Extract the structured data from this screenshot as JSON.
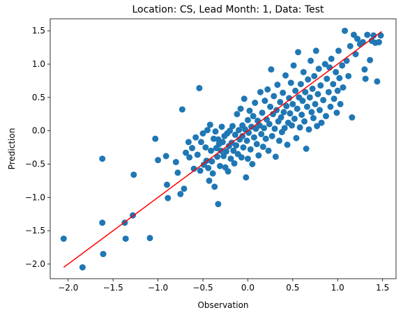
{
  "chart_data": {
    "type": "scatter",
    "title": "Location: CS, Lead Month: 1, Data: Test",
    "xlabel": "Observation",
    "ylabel": "Prediction",
    "xlim": [
      -2.2,
      1.65
    ],
    "ylim": [
      -2.22,
      1.68
    ],
    "xticks": [
      -2.0,
      -1.5,
      -1.0,
      -0.5,
      0.0,
      0.5,
      1.0,
      1.5
    ],
    "yticks": [
      -2.0,
      -1.5,
      -1.0,
      -0.5,
      0.0,
      0.5,
      1.0,
      1.5
    ],
    "xtick_labels": [
      "−2.0",
      "−1.5",
      "−1.0",
      "−0.5",
      "0.0",
      "0.5",
      "1.0",
      "1.5"
    ],
    "ytick_labels": [
      "−2.0",
      "−1.5",
      "−1.0",
      "−0.5",
      "0.0",
      "0.5",
      "1.0",
      "1.5"
    ],
    "grid": false,
    "point_color": "#1f77b4",
    "line_color": "#ff0000",
    "fit_line": {
      "x": [
        -2.05,
        1.49
      ],
      "y": [
        -2.05,
        1.49
      ]
    },
    "points": [
      [
        -2.05,
        -1.62
      ],
      [
        -1.84,
        -2.05
      ],
      [
        -1.62,
        -0.42
      ],
      [
        -1.62,
        -1.38
      ],
      [
        -1.61,
        -1.85
      ],
      [
        -1.37,
        -1.38
      ],
      [
        -1.36,
        -1.62
      ],
      [
        -1.28,
        -1.27
      ],
      [
        -1.27,
        -0.66
      ],
      [
        -1.09,
        -1.61
      ],
      [
        -1.03,
        -0.12
      ],
      [
        -1.0,
        -0.44
      ],
      [
        -0.91,
        -0.38
      ],
      [
        -0.9,
        -0.81
      ],
      [
        -0.89,
        -1.01
      ],
      [
        -0.8,
        -0.47
      ],
      [
        -0.78,
        -0.63
      ],
      [
        -0.75,
        -0.95
      ],
      [
        -0.73,
        0.32
      ],
      [
        -0.71,
        -0.87
      ],
      [
        -0.69,
        -0.33
      ],
      [
        -0.66,
        -0.17
      ],
      [
        -0.65,
        -0.4
      ],
      [
        -0.62,
        -0.26
      ],
      [
        -0.6,
        -0.57
      ],
      [
        -0.58,
        -0.1
      ],
      [
        -0.56,
        -0.36
      ],
      [
        -0.54,
        0.64
      ],
      [
        -0.53,
        -0.6
      ],
      [
        -0.52,
        -0.17
      ],
      [
        -0.5,
        -0.04
      ],
      [
        -0.49,
        -0.51
      ],
      [
        -0.47,
        -0.25
      ],
      [
        -0.46,
        -0.45
      ],
      [
        -0.45,
        0.01
      ],
      [
        -0.44,
        -0.56
      ],
      [
        -0.43,
        -0.75
      ],
      [
        -0.42,
        0.09
      ],
      [
        -0.41,
        -0.3
      ],
      [
        -0.4,
        -0.46
      ],
      [
        -0.39,
        -0.64
      ],
      [
        -0.38,
        -0.12
      ],
      [
        -0.37,
        -0.84
      ],
      [
        -0.36,
        -0.01
      ],
      [
        -0.35,
        -0.26
      ],
      [
        -0.34,
        -0.39
      ],
      [
        -0.33,
        -0.13
      ],
      [
        -0.33,
        -1.1
      ],
      [
        -0.32,
        -0.2
      ],
      [
        -0.31,
        -0.53
      ],
      [
        -0.3,
        -0.3
      ],
      [
        -0.29,
        0.06
      ],
      [
        -0.28,
        -0.17
      ],
      [
        -0.27,
        -0.38
      ],
      [
        -0.26,
        -0.08
      ],
      [
        -0.25,
        -0.55
      ],
      [
        -0.24,
        -0.31
      ],
      [
        -0.23,
        -0.04
      ],
      [
        -0.22,
        -0.61
      ],
      [
        -0.21,
        -0.23
      ],
      [
        -0.2,
        0.0
      ],
      [
        -0.19,
        -0.42
      ],
      [
        -0.18,
        -0.18
      ],
      [
        -0.17,
        0.07
      ],
      [
        -0.16,
        -0.3
      ],
      [
        -0.15,
        -0.49
      ],
      [
        -0.14,
        -0.06
      ],
      [
        -0.13,
        -0.22
      ],
      [
        -0.12,
        0.25
      ],
      [
        -0.11,
        -0.35
      ],
      [
        -0.1,
        0.01
      ],
      [
        -0.09,
        -0.13
      ],
      [
        -0.08,
        0.33
      ],
      [
        -0.07,
        -0.4
      ],
      [
        -0.06,
        -0.08
      ],
      [
        -0.06,
        0.08
      ],
      [
        -0.05,
        -0.25
      ],
      [
        -0.04,
        0.48
      ],
      [
        -0.03,
        0.02
      ],
      [
        -0.02,
        -0.7
      ],
      [
        -0.01,
        -0.15
      ],
      [
        0.0,
        0.16
      ],
      [
        0.0,
        -0.42
      ],
      [
        0.01,
        -0.03
      ],
      [
        0.02,
        0.3
      ],
      [
        0.03,
        -0.28
      ],
      [
        0.04,
        0.06
      ],
      [
        0.05,
        -0.5
      ],
      [
        0.06,
        0.22
      ],
      [
        0.07,
        -0.1
      ],
      [
        0.08,
        0.42
      ],
      [
        0.09,
        0.03
      ],
      [
        0.1,
        -0.2
      ],
      [
        0.11,
        0.15
      ],
      [
        0.12,
        -0.37
      ],
      [
        0.13,
        0.08
      ],
      [
        0.14,
        0.58
      ],
      [
        0.15,
        -0.05
      ],
      [
        0.16,
        0.27
      ],
      [
        0.17,
        -0.24
      ],
      [
        0.18,
        0.04
      ],
      [
        0.19,
        0.45
      ],
      [
        0.2,
        -0.12
      ],
      [
        0.21,
        0.17
      ],
      [
        0.22,
        0.62
      ],
      [
        0.23,
        -0.3
      ],
      [
        0.24,
        0.1
      ],
      [
        0.25,
        0.36
      ],
      [
        0.26,
        0.92
      ],
      [
        0.27,
        -0.08
      ],
      [
        0.28,
        0.25
      ],
      [
        0.29,
        0.52
      ],
      [
        0.3,
        0.03
      ],
      [
        0.31,
        -0.39
      ],
      [
        0.32,
        0.31
      ],
      [
        0.33,
        0.69
      ],
      [
        0.34,
        0.14
      ],
      [
        0.35,
        -0.15
      ],
      [
        0.36,
        0.43
      ],
      [
        0.37,
        0.2
      ],
      [
        0.38,
        -0.02
      ],
      [
        0.39,
        0.57
      ],
      [
        0.4,
        0.28
      ],
      [
        0.41,
        0.04
      ],
      [
        0.42,
        0.83
      ],
      [
        0.43,
        0.37
      ],
      [
        0.44,
        -0.21
      ],
      [
        0.45,
        0.12
      ],
      [
        0.46,
        0.49
      ],
      [
        0.47,
        0.26
      ],
      [
        0.48,
        0.72
      ],
      [
        0.49,
        0.08
      ],
      [
        0.5,
        0.4
      ],
      [
        0.51,
        0.98
      ],
      [
        0.52,
        0.18
      ],
      [
        0.53,
        0.6
      ],
      [
        0.54,
        -0.11
      ],
      [
        0.55,
        0.33
      ],
      [
        0.56,
        1.18
      ],
      [
        0.57,
        0.5
      ],
      [
        0.58,
        0.05
      ],
      [
        0.59,
        0.7
      ],
      [
        0.6,
        0.24
      ],
      [
        0.61,
        0.45
      ],
      [
        0.62,
        0.88
      ],
      [
        0.63,
        0.14
      ],
      [
        0.64,
        0.58
      ],
      [
        0.65,
        -0.27
      ],
      [
        0.66,
        0.36
      ],
      [
        0.67,
        0.77
      ],
      [
        0.68,
        0.02
      ],
      [
        0.69,
        0.5
      ],
      [
        0.7,
        1.05
      ],
      [
        0.71,
        0.28
      ],
      [
        0.72,
        0.63
      ],
      [
        0.73,
        0.19
      ],
      [
        0.74,
        0.82
      ],
      [
        0.75,
        0.4
      ],
      [
        0.76,
        1.2
      ],
      [
        0.77,
        0.07
      ],
      [
        0.78,
        0.55
      ],
      [
        0.79,
        0.93
      ],
      [
        0.8,
        0.31
      ],
      [
        0.81,
        0.68
      ],
      [
        0.82,
        0.12
      ],
      [
        0.84,
        0.46
      ],
      [
        0.86,
        1.0
      ],
      [
        0.87,
        0.22
      ],
      [
        0.88,
        0.78
      ],
      [
        0.9,
        0.58
      ],
      [
        0.91,
        0.95
      ],
      [
        0.92,
        0.36
      ],
      [
        0.93,
        1.08
      ],
      [
        0.95,
        0.7
      ],
      [
        0.96,
        0.48
      ],
      [
        0.98,
        0.88
      ],
      [
        0.99,
        0.27
      ],
      [
        1.0,
        0.6
      ],
      [
        1.01,
        1.2
      ],
      [
        1.02,
        0.79
      ],
      [
        1.03,
        0.4
      ],
      [
        1.05,
        0.98
      ],
      [
        1.06,
        0.65
      ],
      [
        1.08,
        1.5
      ],
      [
        1.1,
        1.05
      ],
      [
        1.12,
        0.82
      ],
      [
        1.14,
        1.27
      ],
      [
        1.16,
        0.2
      ],
      [
        1.18,
        1.44
      ],
      [
        1.2,
        1.15
      ],
      [
        1.22,
        1.38
      ],
      [
        1.25,
        1.3
      ],
      [
        1.28,
        1.33
      ],
      [
        1.3,
        0.92
      ],
      [
        1.31,
        0.78
      ],
      [
        1.33,
        1.44
      ],
      [
        1.36,
        1.06
      ],
      [
        1.38,
        1.35
      ],
      [
        1.4,
        1.43
      ],
      [
        1.42,
        1.32
      ],
      [
        1.44,
        0.74
      ],
      [
        1.46,
        1.33
      ],
      [
        1.48,
        1.43
      ]
    ]
  }
}
